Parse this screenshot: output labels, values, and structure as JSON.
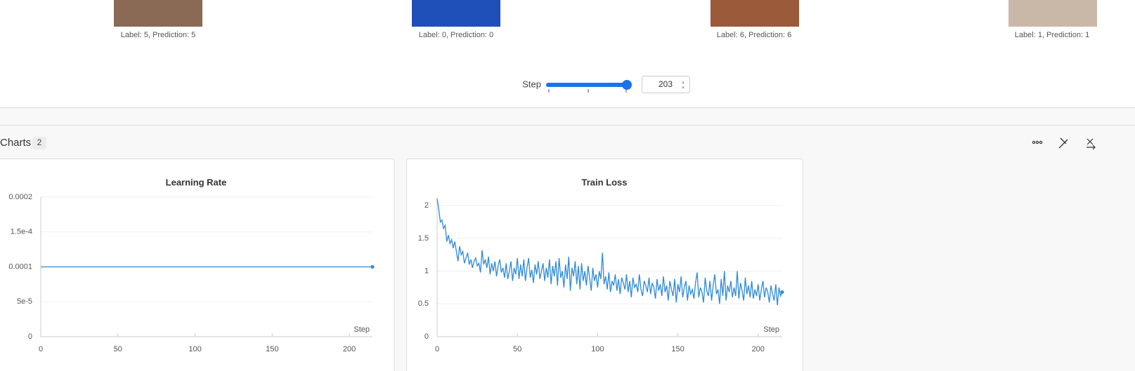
{
  "images": [
    {
      "caption": "Label: 5, Prediction: 5"
    },
    {
      "caption": "Label: 0, Prediction: 0"
    },
    {
      "caption": "Label: 6, Prediction: 6"
    },
    {
      "caption": "Label: 1, Prediction: 1"
    }
  ],
  "step_control": {
    "label": "Step",
    "value": 203
  },
  "section": {
    "title": "Charts",
    "count": 2
  },
  "chart_data": [
    {
      "type": "line",
      "title": "Learning Rate",
      "x_label": "Step",
      "color": "#2f8ad8",
      "grid": true,
      "xlim": [
        0,
        215
      ],
      "ylim": [
        0,
        0.0002
      ],
      "xticks": [
        0,
        50,
        100,
        150,
        200
      ],
      "yticks": [
        0,
        {
          "value": 5e-05,
          "label": "5e-5"
        },
        0.0001,
        {
          "value": 0.00015,
          "label": "1.5e-4"
        },
        0.0002
      ],
      "x": [
        0,
        215
      ],
      "values": [
        0.0001,
        0.0001
      ]
    },
    {
      "type": "line",
      "title": "Train Loss",
      "x_label": "Step",
      "color": "#2f8ad8",
      "grid": true,
      "xlim": [
        0,
        215
      ],
      "ylim": [
        0,
        2.13
      ],
      "xticks": [
        0,
        50,
        100,
        150,
        200
      ],
      "yticks": [
        0,
        0.5,
        1,
        1.5,
        2
      ],
      "x": [
        0,
        1,
        2,
        3,
        4,
        5,
        6,
        7,
        8,
        9,
        10,
        11,
        12,
        13,
        14,
        15,
        16,
        17,
        18,
        19,
        20,
        21,
        22,
        23,
        24,
        25,
        26,
        27,
        28,
        29,
        30,
        31,
        32,
        33,
        34,
        35,
        36,
        37,
        38,
        39,
        40,
        41,
        42,
        43,
        44,
        45,
        46,
        47,
        48,
        49,
        50,
        51,
        52,
        53,
        54,
        55,
        56,
        57,
        58,
        59,
        60,
        61,
        62,
        63,
        64,
        65,
        66,
        67,
        68,
        69,
        70,
        71,
        72,
        73,
        74,
        75,
        76,
        77,
        78,
        79,
        80,
        81,
        82,
        83,
        84,
        85,
        86,
        87,
        88,
        89,
        90,
        91,
        92,
        93,
        94,
        95,
        96,
        97,
        98,
        99,
        100,
        101,
        102,
        103,
        104,
        105,
        106,
        107,
        108,
        109,
        110,
        111,
        112,
        113,
        114,
        115,
        116,
        117,
        118,
        119,
        120,
        121,
        122,
        123,
        124,
        125,
        126,
        127,
        128,
        129,
        130,
        131,
        132,
        133,
        134,
        135,
        136,
        137,
        138,
        139,
        140,
        141,
        142,
        143,
        144,
        145,
        146,
        147,
        148,
        149,
        150,
        151,
        152,
        153,
        154,
        155,
        156,
        157,
        158,
        159,
        160,
        161,
        162,
        163,
        164,
        165,
        166,
        167,
        168,
        169,
        170,
        171,
        172,
        173,
        174,
        175,
        176,
        177,
        178,
        179,
        180,
        181,
        182,
        183,
        184,
        185,
        186,
        187,
        188,
        189,
        190,
        191,
        192,
        193,
        194,
        195,
        196,
        197,
        198,
        199,
        200,
        201,
        202,
        203,
        204,
        205,
        206,
        207,
        208,
        209,
        210,
        211,
        212,
        213,
        214,
        215
      ],
      "values": [
        2.1,
        1.95,
        1.75,
        1.78,
        1.65,
        1.7,
        1.45,
        1.55,
        1.42,
        1.48,
        1.35,
        1.45,
        1.3,
        1.15,
        1.38,
        1.25,
        1.3,
        1.12,
        1.2,
        1.28,
        1.1,
        1.18,
        1.05,
        1.15,
        1.2,
        1.08,
        1.12,
        0.98,
        1.32,
        1.1,
        1.18,
        1.05,
        1.22,
        0.95,
        1.12,
        1.0,
        1.15,
        0.92,
        1.08,
        1.18,
        0.98,
        1.05,
        0.9,
        1.12,
        0.88,
        1.0,
        1.15,
        0.85,
        1.05,
        0.95,
        1.2,
        0.88,
        1.1,
        0.92,
        1.18,
        0.85,
        1.05,
        1.2,
        0.9,
        1.02,
        0.82,
        1.1,
        0.95,
        1.15,
        0.88,
        1.0,
        1.12,
        0.85,
        1.05,
        0.9,
        1.18,
        0.8,
        1.08,
        0.92,
        1.15,
        0.78,
        1.2,
        0.9,
        1.0,
        0.75,
        1.1,
        0.88,
        1.22,
        0.7,
        1.05,
        0.92,
        1.15,
        0.8,
        1.08,
        0.72,
        1.12,
        0.85,
        1.0,
        0.78,
        1.08,
        0.9,
        0.7,
        1.05,
        0.85,
        0.95,
        0.75,
        1.0,
        0.88,
        1.28,
        0.8,
        0.92,
        0.72,
        0.98,
        0.68,
        0.85,
        0.78,
        0.95,
        0.7,
        0.88,
        0.65,
        0.9,
        0.82,
        0.72,
        0.95,
        0.68,
        0.85,
        0.6,
        0.9,
        0.75,
        0.8,
        0.68,
        0.95,
        0.72,
        0.62,
        0.85,
        0.78,
        0.68,
        0.9,
        0.65,
        0.82,
        0.75,
        0.58,
        0.88,
        0.7,
        0.8,
        0.62,
        0.92,
        0.68,
        0.78,
        0.55,
        0.85,
        0.72,
        0.62,
        0.88,
        0.52,
        0.8,
        0.68,
        0.92,
        0.6,
        0.75,
        0.85,
        0.55,
        0.78,
        0.65,
        0.72,
        0.58,
        0.82,
        0.98,
        0.6,
        0.75,
        0.68,
        0.52,
        0.9,
        0.7,
        0.62,
        0.85,
        0.55,
        0.78,
        0.95,
        0.65,
        0.72,
        0.5,
        0.88,
        0.62,
        1.0,
        0.55,
        0.78,
        0.68,
        0.85,
        0.6,
        0.75,
        0.62,
        1.0,
        0.58,
        0.82,
        0.7,
        0.55,
        0.9,
        0.65,
        0.78,
        0.6,
        0.85,
        0.58,
        0.72,
        0.62,
        0.8,
        0.55,
        0.72,
        0.85,
        0.6,
        0.75,
        0.68,
        0.52,
        0.78,
        0.65,
        0.55,
        0.8,
        0.48,
        0.75,
        0.62,
        0.68
      ]
    }
  ]
}
